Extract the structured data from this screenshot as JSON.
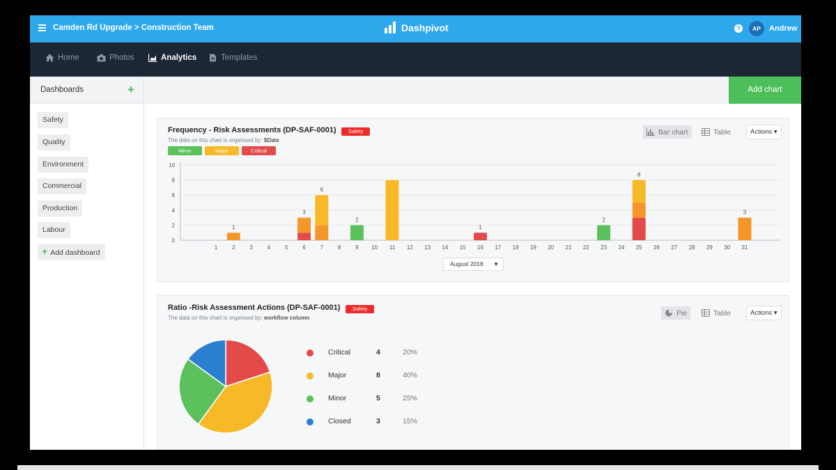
{
  "topbar": {
    "breadcrumb": "Camden Rd Upgrade > Construction Team",
    "logo": "Dashpivot",
    "help": "?",
    "avatar_initials": "AP",
    "username": "Andrew"
  },
  "nav": [
    {
      "label": "Home",
      "icon": "home-icon"
    },
    {
      "label": "Photos",
      "icon": "camera-icon"
    },
    {
      "label": "Analytics",
      "icon": "analytics-icon",
      "active": true
    },
    {
      "label": "Templates",
      "icon": "document-icon"
    }
  ],
  "sidebar": {
    "title": "Dashboards",
    "items": [
      "Safety",
      "Quality",
      "Environment",
      "Commercial",
      "Production",
      "Labour"
    ],
    "add_label": "Add dashboard"
  },
  "main": {
    "add_chart_label": "Add chart"
  },
  "colors": {
    "minor": "#5cc05c",
    "major": "#f7b928",
    "critical": "#e34a4a",
    "orange": "#f5962b",
    "closed": "#2b7fd0",
    "accent": "#2ea8ec",
    "nav_bg": "#1c2735",
    "add_green": "#4cbf5a"
  },
  "frequency_card": {
    "title": "Frequency - Risk Assessments (DP-SAF-0001)",
    "badge": "Safety",
    "subtitle_prefix": "The data on this chart is organised by:",
    "subtitle_field": "$Date",
    "legend": [
      "Minor",
      "Major",
      "Critical"
    ],
    "view_bar": "Bar chart",
    "view_table": "Table",
    "actions": "Actions",
    "month": "August 2018"
  },
  "ratio_card": {
    "title": "Ratio -Risk Assessment Actions (DP-SAF-0001)",
    "badge": "Safety",
    "subtitle_prefix": "The data on this chart is organised by:",
    "subtitle_field": "workflow column",
    "view_pie": "Pie",
    "view_table": "Table",
    "actions": "Actions"
  },
  "chart_data": [
    {
      "type": "bar",
      "stacked": true,
      "categories": [
        "1",
        "2",
        "3",
        "4",
        "5",
        "6",
        "7",
        "8",
        "9",
        "10",
        "11",
        "12",
        "13",
        "14",
        "15",
        "16",
        "17",
        "18",
        "19",
        "20",
        "21",
        "22",
        "23",
        "24",
        "25",
        "26",
        "27",
        "28",
        "29",
        "30",
        "31"
      ],
      "yticks": [
        0,
        2,
        4,
        6,
        8,
        10
      ],
      "ylim": [
        0,
        10
      ],
      "grid": true,
      "legend_position": "top-left",
      "bars": [
        {
          "x": "2",
          "total": "1",
          "segments": [
            {
              "color": "orange",
              "value": 1
            }
          ]
        },
        {
          "x": "6",
          "total": "3",
          "segments": [
            {
              "color": "critical",
              "value": 1
            },
            {
              "color": "orange",
              "value": 2
            }
          ]
        },
        {
          "x": "7",
          "total": "6",
          "segments": [
            {
              "color": "orange",
              "value": 2
            },
            {
              "color": "major",
              "value": 4
            }
          ]
        },
        {
          "x": "9",
          "total": "2",
          "segments": [
            {
              "color": "minor",
              "value": 2
            }
          ]
        },
        {
          "x": "11",
          "total": "",
          "segments": [
            {
              "color": "major",
              "value": 8
            }
          ]
        },
        {
          "x": "16",
          "total": "1",
          "segments": [
            {
              "color": "critical",
              "value": 1
            }
          ]
        },
        {
          "x": "23",
          "total": "2",
          "segments": [
            {
              "color": "minor",
              "value": 2
            }
          ]
        },
        {
          "x": "25",
          "total": "8",
          "segments": [
            {
              "color": "critical",
              "value": 3
            },
            {
              "color": "orange",
              "value": 2
            },
            {
              "color": "major",
              "value": 3
            }
          ]
        },
        {
          "x": "31",
          "total": "3",
          "segments": [
            {
              "color": "orange",
              "value": 3
            }
          ]
        }
      ]
    },
    {
      "type": "pie",
      "slices": [
        {
          "label": "Critical",
          "value": 4,
          "percent": "20%",
          "color": "critical"
        },
        {
          "label": "Major",
          "value": 8,
          "percent": "40%",
          "color": "major"
        },
        {
          "label": "Minor",
          "value": 5,
          "percent": "25%",
          "color": "minor"
        },
        {
          "label": "Closed",
          "value": 3,
          "percent": "15%",
          "color": "closed"
        }
      ]
    }
  ]
}
